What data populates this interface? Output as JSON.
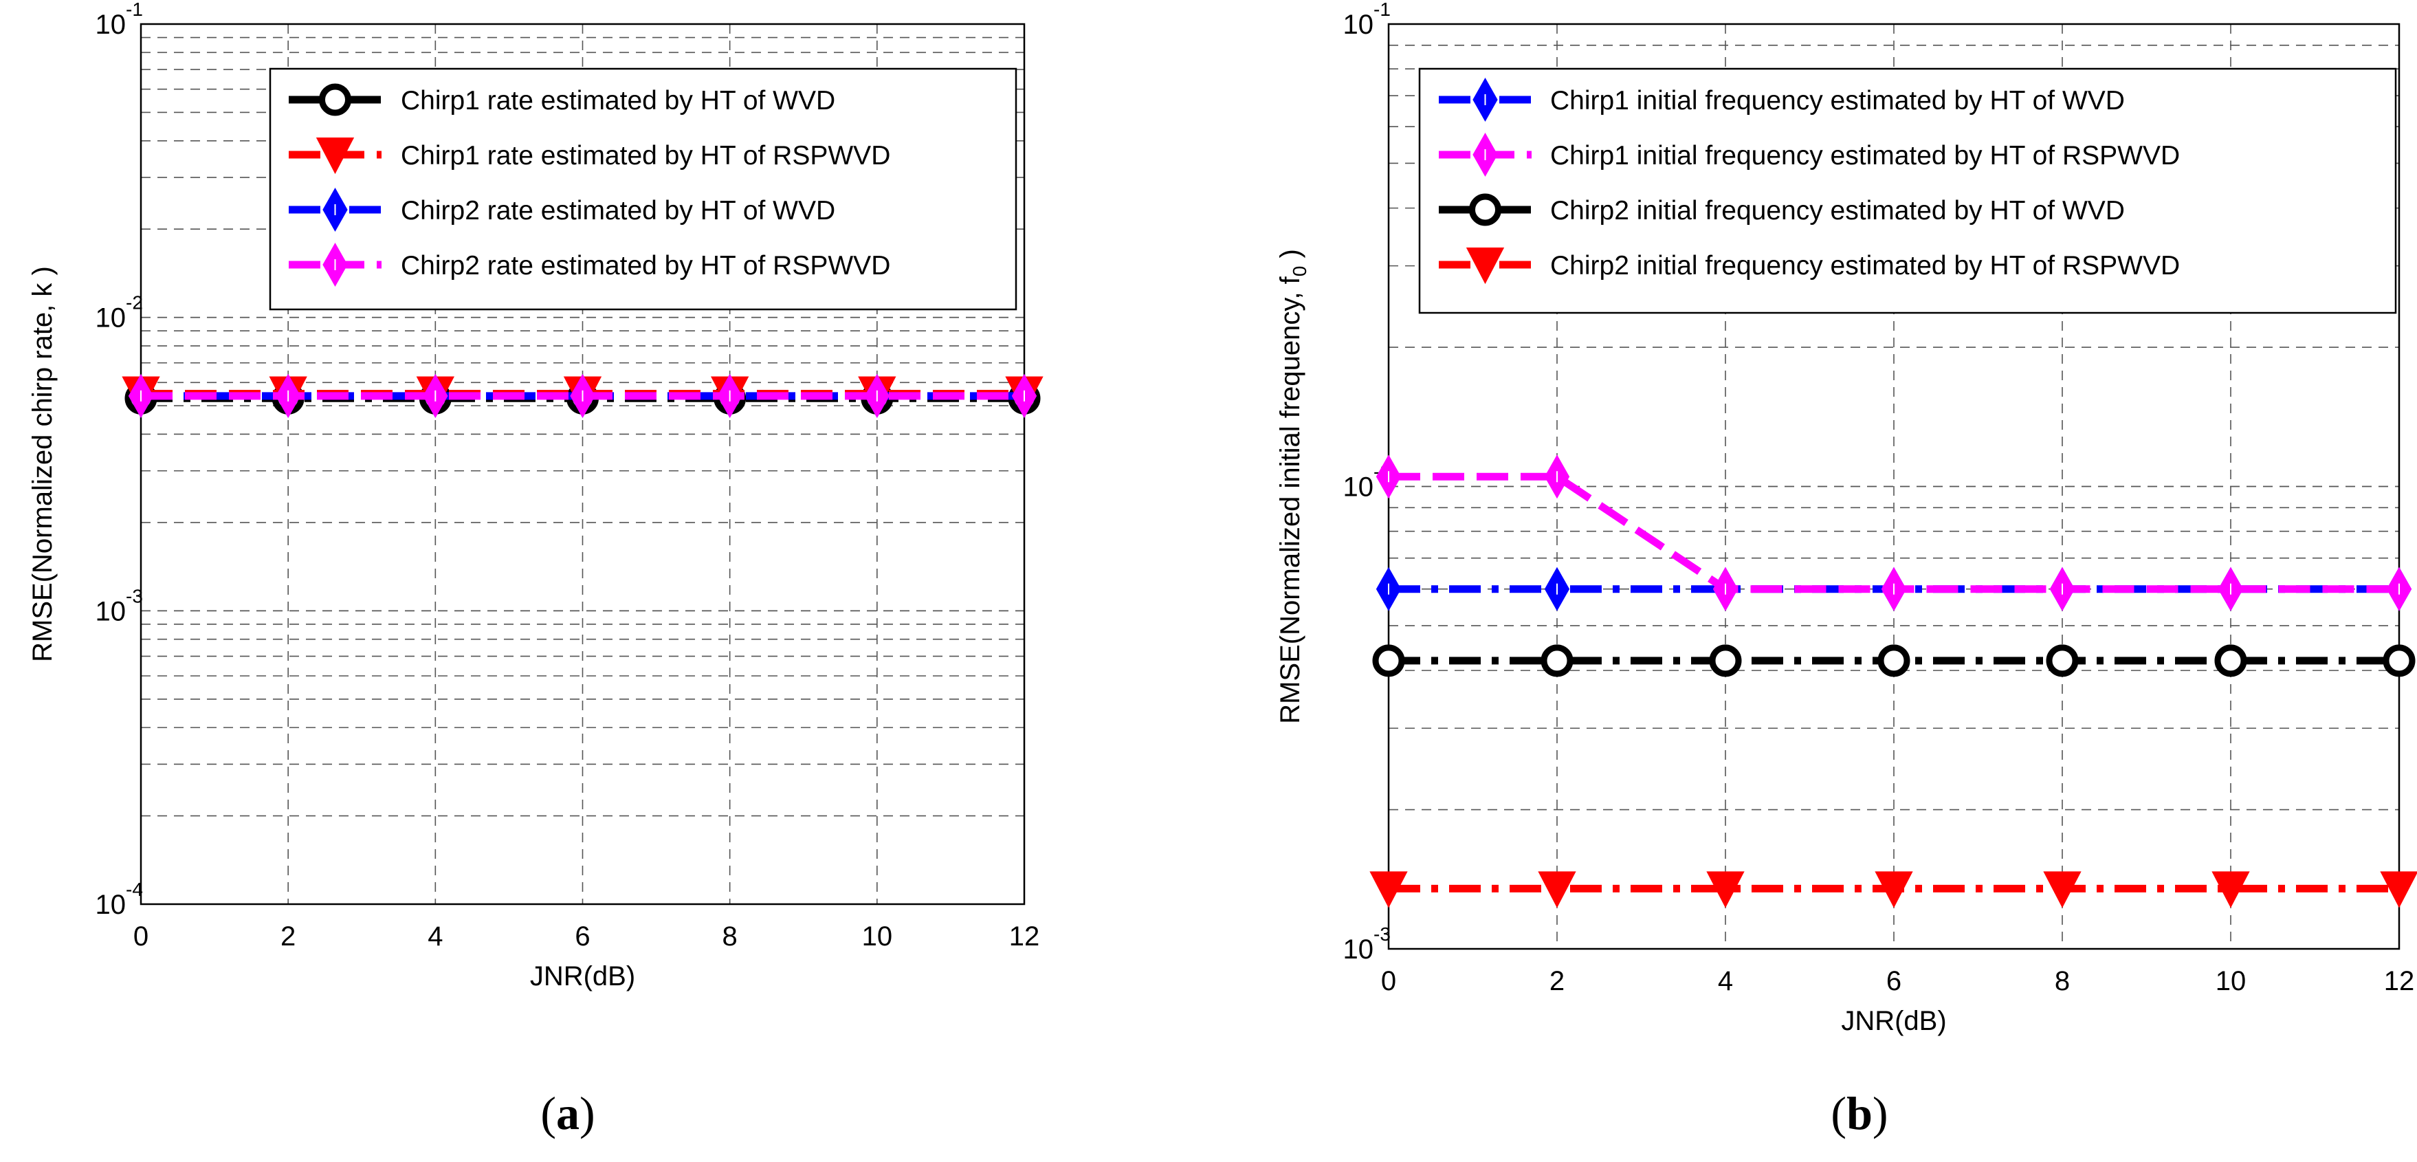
{
  "chart_data": [
    {
      "type": "line",
      "panel_label": "a",
      "xlabel": "JNR(dB)",
      "ylabel": "RMSE(Normalized chirp rate, k )",
      "yscale": "log",
      "ylim": [
        0.0001,
        0.1
      ],
      "xlim": [
        0,
        12
      ],
      "x": [
        0,
        2,
        4,
        6,
        8,
        10,
        12
      ],
      "x_ticks": [
        "0",
        "2",
        "4",
        "6",
        "8",
        "10",
        "12"
      ],
      "y_ticks": [
        {
          "base": "10",
          "exp": "-4",
          "value": 0.0001
        },
        {
          "base": "10",
          "exp": "-3",
          "value": 0.001
        },
        {
          "base": "10",
          "exp": "-2",
          "value": 0.01
        },
        {
          "base": "10",
          "exp": "-1",
          "value": 0.1
        }
      ],
      "grid": true,
      "legend_position": "top-right",
      "series": [
        {
          "name": "Chirp1 rate estimated by HT of WVD",
          "color": "#000000",
          "marker": "circle",
          "dash": "dashdot",
          "values": [
            0.0053,
            0.0053,
            0.0053,
            0.0053,
            0.0053,
            0.0053,
            0.0053
          ]
        },
        {
          "name": "Chirp1 rate estimated by HT of RSPWVD",
          "color": "#ff0000",
          "marker": "triangle-down",
          "dash": "dash",
          "values": [
            0.0055,
            0.0055,
            0.0055,
            0.0055,
            0.0055,
            0.0055,
            0.0055
          ]
        },
        {
          "name": "Chirp2 rate estimated by HT of WVD",
          "color": "#0000ff",
          "marker": "diamond",
          "dash": "dashdot",
          "values": [
            0.0054,
            0.0054,
            0.0054,
            0.0054,
            0.0054,
            0.0054,
            0.0054
          ]
        },
        {
          "name": "Chirp2 rate estimated by HT of RSPWVD",
          "color": "#ff00ff",
          "marker": "diamond",
          "dash": "dash",
          "values": [
            0.0054,
            0.0054,
            0.0054,
            0.0054,
            0.0054,
            0.0054,
            0.0054
          ]
        }
      ]
    },
    {
      "type": "line",
      "panel_label": "b",
      "xlabel": "JNR(dB)",
      "ylabel": "RMSE(Normalized initial frequency, f",
      "ylabel_sub": "0",
      "ylabel_end": " )",
      "yscale": "log",
      "ylim": [
        0.001,
        0.1
      ],
      "xlim": [
        0,
        12
      ],
      "x": [
        0,
        2,
        4,
        6,
        8,
        10,
        12
      ],
      "x_ticks": [
        "0",
        "2",
        "4",
        "6",
        "8",
        "10",
        "12"
      ],
      "y_ticks": [
        {
          "base": "10",
          "exp": "-3",
          "value": 0.001
        },
        {
          "base": "10",
          "exp": "-2",
          "value": 0.01
        },
        {
          "base": "10",
          "exp": "-1",
          "value": 0.1
        }
      ],
      "grid": true,
      "legend_position": "top-right",
      "series": [
        {
          "name": "Chirp1 initial frequency estimated by HT of WVD",
          "color": "#0000ff",
          "marker": "diamond",
          "dash": "dashdot",
          "values": [
            0.006,
            0.006,
            0.006,
            0.006,
            0.006,
            0.006,
            0.006
          ]
        },
        {
          "name": "Chirp1 initial frequency estimated by HT of RSPWVD",
          "color": "#ff00ff",
          "marker": "diamond",
          "dash": "dash",
          "values": [
            0.0105,
            0.0105,
            0.006,
            0.006,
            0.006,
            0.006,
            0.006
          ]
        },
        {
          "name": "Chirp2 initial frequency estimated by HT of WVD",
          "color": "#000000",
          "marker": "circle",
          "dash": "dashdot",
          "values": [
            0.0042,
            0.0042,
            0.0042,
            0.0042,
            0.0042,
            0.0042,
            0.0042
          ]
        },
        {
          "name": "Chirp2 initial frequency estimated by HT of RSPWVD",
          "color": "#ff0000",
          "marker": "triangle-down",
          "dash": "dashdot",
          "values": [
            0.00135,
            0.00135,
            0.00135,
            0.00135,
            0.00135,
            0.00135,
            0.00135
          ]
        }
      ]
    }
  ],
  "captions": {
    "a": "a",
    "b": "b"
  }
}
